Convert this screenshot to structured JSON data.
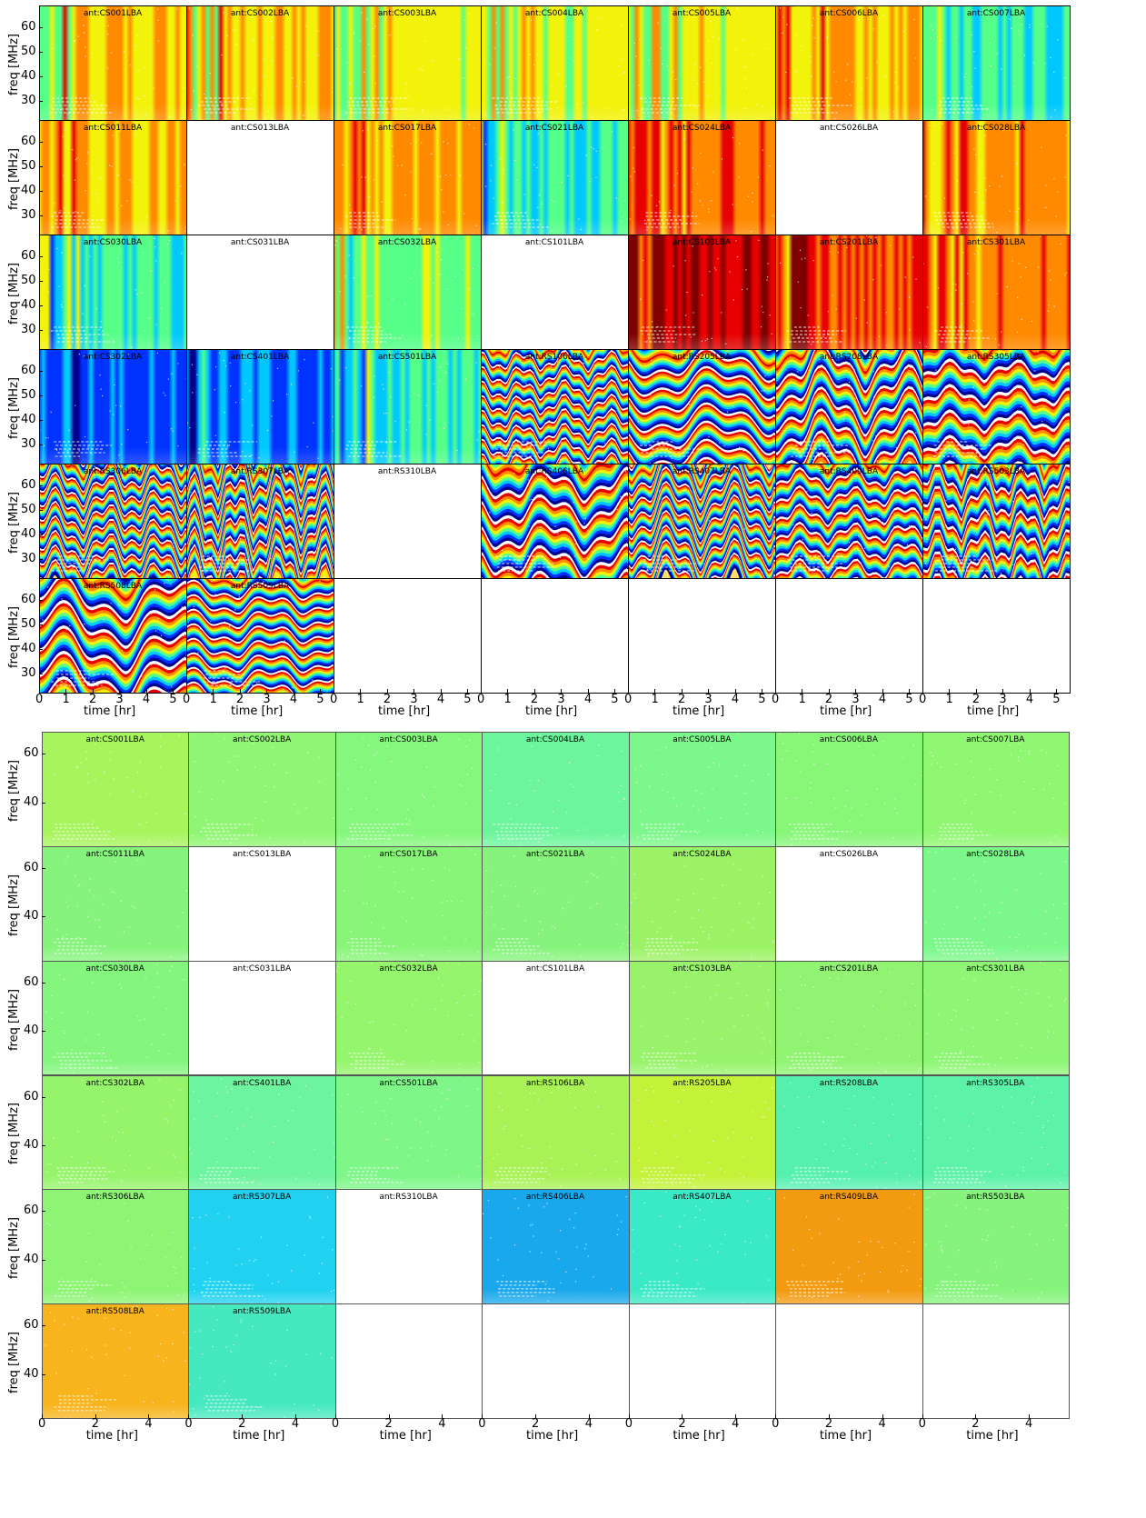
{
  "colors": {
    "strong": [
      "#00008f",
      "#0033ff",
      "#00c8ff",
      "#55ff88",
      "#f2f20a",
      "#ff8a00",
      "#e60000",
      "#7f0000"
    ]
  },
  "chart_data": [
    {
      "type": "heatmap",
      "title": "",
      "xlabel": "time [hr]",
      "ylabel": "freq [MHz]",
      "xlim": [
        0,
        5.5
      ],
      "ylim": [
        22,
        69
      ],
      "x_ticks": [
        0,
        1,
        2,
        3,
        4,
        5
      ],
      "y_ticks": [
        30,
        40,
        50,
        60
      ],
      "grid": false,
      "panels": [
        {
          "antenna": "ant:CS001LBA",
          "shade": 0.6,
          "style": "stripes"
        },
        {
          "antenna": "ant:CS002LBA",
          "shade": 0.62,
          "style": "stripes"
        },
        {
          "antenna": "ant:CS003LBA",
          "shade": 0.55,
          "style": "stripes"
        },
        {
          "antenna": "ant:CS004LBA",
          "shade": 0.55,
          "style": "stripes"
        },
        {
          "antenna": "ant:CS005LBA",
          "shade": 0.56,
          "style": "stripes"
        },
        {
          "antenna": "ant:CS006LBA",
          "shade": 0.64,
          "style": "stripes"
        },
        {
          "antenna": "ant:CS007LBA",
          "shade": 0.38,
          "style": "stripes"
        },
        {
          "antenna": "ant:CS011LBA",
          "shade": 0.66,
          "style": "stripes"
        },
        {
          "antenna": "ant:CS013LBA",
          "shade": null,
          "style": "blank"
        },
        {
          "antenna": "ant:CS017LBA",
          "shade": 0.68,
          "style": "stripes"
        },
        {
          "antenna": "ant:CS021LBA",
          "shade": 0.4,
          "style": "stripes"
        },
        {
          "antenna": "ant:CS024LBA",
          "shade": 0.7,
          "style": "stripes"
        },
        {
          "antenna": "ant:CS026LBA",
          "shade": null,
          "style": "blank"
        },
        {
          "antenna": "ant:CS028LBA",
          "shade": 0.68,
          "style": "stripes"
        },
        {
          "antenna": "ant:CS030LBA",
          "shade": 0.4,
          "style": "stripes"
        },
        {
          "antenna": "ant:CS031LBA",
          "shade": null,
          "style": "blank"
        },
        {
          "antenna": "ant:CS032LBA",
          "shade": 0.45,
          "style": "stripes"
        },
        {
          "antenna": "ant:CS101LBA",
          "shade": null,
          "style": "blank"
        },
        {
          "antenna": "ant:CS103LBA",
          "shade": 0.84,
          "style": "stripes"
        },
        {
          "antenna": "ant:CS201LBA",
          "shade": 0.74,
          "style": "stripes"
        },
        {
          "antenna": "ant:CS301LBA",
          "shade": 0.7,
          "style": "stripes"
        },
        {
          "antenna": "ant:CS302LBA",
          "shade": 0.2,
          "style": "stripes"
        },
        {
          "antenna": "ant:CS401LBA",
          "shade": 0.25,
          "style": "stripes"
        },
        {
          "antenna": "ant:CS501LBA",
          "shade": 0.38,
          "style": "stripes"
        },
        {
          "antenna": "ant:RS106LBA",
          "shade": null,
          "style": "wrap"
        },
        {
          "antenna": "ant:RS205LBA",
          "shade": null,
          "style": "wrap"
        },
        {
          "antenna": "ant:RS208LBA",
          "shade": null,
          "style": "wrap"
        },
        {
          "antenna": "ant:RS305LBA",
          "shade": null,
          "style": "wrap"
        },
        {
          "antenna": "ant:RS306LBA",
          "shade": null,
          "style": "wrap"
        },
        {
          "antenna": "ant:RS307LBA",
          "shade": null,
          "style": "wrap"
        },
        {
          "antenna": "ant:RS310LBA",
          "shade": null,
          "style": "blank"
        },
        {
          "antenna": "ant:RS406LBA",
          "shade": null,
          "style": "wrap"
        },
        {
          "antenna": "ant:RS407LBA",
          "shade": null,
          "style": "wrap"
        },
        {
          "antenna": "ant:RS409LBA",
          "shade": null,
          "style": "wrap"
        },
        {
          "antenna": "ant:RS503LBA",
          "shade": null,
          "style": "wrap"
        },
        {
          "antenna": "ant:RS508LBA",
          "shade": null,
          "style": "wrap"
        },
        {
          "antenna": "ant:RS509LBA",
          "shade": null,
          "style": "wrap"
        }
      ]
    },
    {
      "type": "heatmap",
      "title": "",
      "xlabel": "time [hr]",
      "ylabel": "freq [MHz]",
      "xlim": [
        0,
        5.5
      ],
      "ylim": [
        22,
        69
      ],
      "x_ticks": [
        0,
        2,
        4
      ],
      "y_ticks": [
        40,
        60
      ],
      "grid": false,
      "panels": [
        {
          "antenna": "ant:CS001LBA",
          "color": "#a6f55c"
        },
        {
          "antenna": "ant:CS002LBA",
          "color": "#8ff572"
        },
        {
          "antenna": "ant:CS003LBA",
          "color": "#85f77c"
        },
        {
          "antenna": "ant:CS004LBA",
          "color": "#6cf59c"
        },
        {
          "antenna": "ant:CS005LBA",
          "color": "#7cf78a"
        },
        {
          "antenna": "ant:CS006LBA",
          "color": "#88f778"
        },
        {
          "antenna": "ant:CS007LBA",
          "color": "#90f772"
        },
        {
          "antenna": "ant:CS011LBA",
          "color": "#86f47c"
        },
        {
          "antenna": "ant:CS013LBA",
          "color": null
        },
        {
          "antenna": "ant:CS017LBA",
          "color": "#88f578"
        },
        {
          "antenna": "ant:CS021LBA",
          "color": "#86f47c"
        },
        {
          "antenna": "ant:CS024LBA",
          "color": "#9cf265"
        },
        {
          "antenna": "ant:CS026LBA",
          "color": null
        },
        {
          "antenna": "ant:CS028LBA",
          "color": "#7cf88a"
        },
        {
          "antenna": "ant:CS030LBA",
          "color": "#84f67e"
        },
        {
          "antenna": "ant:CS031LBA",
          "color": null
        },
        {
          "antenna": "ant:CS032LBA",
          "color": "#95f56c"
        },
        {
          "antenna": "ant:CS101LBA",
          "color": null
        },
        {
          "antenna": "ant:CS103LBA",
          "color": "#98f36a"
        },
        {
          "antenna": "ant:CS201LBA",
          "color": "#90f472"
        },
        {
          "antenna": "ant:CS301LBA",
          "color": "#8ef674"
        },
        {
          "antenna": "ant:CS302LBA",
          "color": "#96f46b"
        },
        {
          "antenna": "ant:CS401LBA",
          "color": "#6cf49e"
        },
        {
          "antenna": "ant:CS501LBA",
          "color": "#7ef688"
        },
        {
          "antenna": "ant:RS106LBA",
          "color": "#a9f255"
        },
        {
          "antenna": "ant:RS205LBA",
          "color": "#c4f238"
        },
        {
          "antenna": "ant:RS208LBA",
          "color": "#56f0ae"
        },
        {
          "antenna": "ant:RS305LBA",
          "color": "#5cf2a8"
        },
        {
          "antenna": "ant:RS306LBA",
          "color": "#8ef474"
        },
        {
          "antenna": "ant:RS307LBA",
          "color": "#20d2f0"
        },
        {
          "antenna": "ant:RS310LBA",
          "color": null
        },
        {
          "antenna": "ant:RS406LBA",
          "color": "#1aa8ec"
        },
        {
          "antenna": "ant:RS407LBA",
          "color": "#3aeac6"
        },
        {
          "antenna": "ant:RS409LBA",
          "color": "#f29a10"
        },
        {
          "antenna": "ant:RS503LBA",
          "color": "#86f47c"
        },
        {
          "antenna": "ant:RS508LBA",
          "color": "#f7b41c"
        },
        {
          "antenna": "ant:RS509LBA",
          "color": "#46e8c0"
        }
      ]
    }
  ]
}
